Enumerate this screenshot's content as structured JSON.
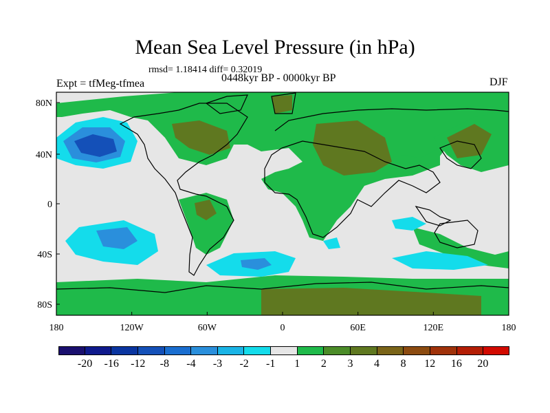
{
  "title": "Mean Sea Level Pressure (in hPa)",
  "stats": "rmsd= 1.18414  diff= 0.32019",
  "experiment": "Expt = tfMeg-tfmea",
  "period": "0448kyr BP - 0000kyr BP",
  "season": "DJF",
  "axes": {
    "x_ticks": [
      "180",
      "120W",
      "60W",
      "0",
      "60E",
      "120E",
      "180"
    ],
    "y_ticks": [
      "80N",
      "40N",
      "0",
      "40S",
      "80S"
    ]
  },
  "colorbar": {
    "colors": [
      "#1a0f6e",
      "#0f1a8c",
      "#0a35a0",
      "#1450b8",
      "#1a6ed0",
      "#2a8fdc",
      "#1ab4e6",
      "#14dceb",
      "#e6e6e6",
      "#1fba4a",
      "#4b8c28",
      "#5f7820",
      "#7a6418",
      "#8c4b10",
      "#a0320a",
      "#b41e05",
      "#d20a00"
    ],
    "labels": [
      "-20",
      "-16",
      "-12",
      "-8",
      "-4",
      "-3",
      "-2",
      "-1",
      "1",
      "2",
      "3",
      "4",
      "8",
      "12",
      "16",
      "20"
    ]
  },
  "colors": {
    "neutral": "#e6e6e6",
    "low1": "#14dceb",
    "low2": "#2a8fdc",
    "low3": "#1450b8",
    "high1": "#1fba4a",
    "high2": "#5f7820",
    "high3": "#7a6418"
  }
}
